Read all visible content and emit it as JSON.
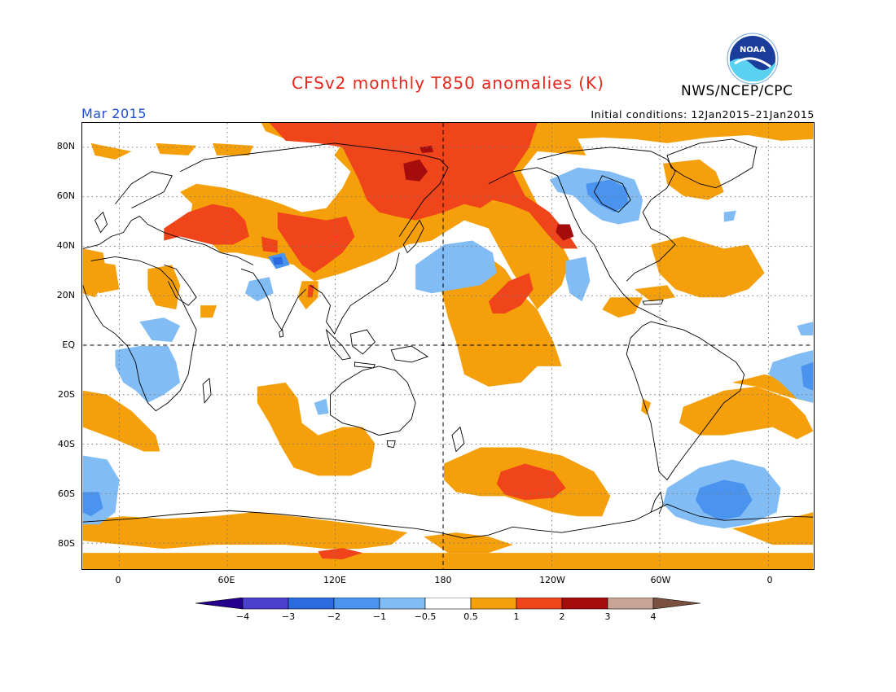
{
  "header": {
    "title": "CFSv2 monthly T850 anomalies (K)",
    "agency": "NWS/NCEP/CPC",
    "month": "Mar 2015",
    "initial_conditions": "Initial conditions: 12Jan2015–21Jan2015",
    "logo_text": "NOAA"
  },
  "map": {
    "variable": "T850 anomalies",
    "units": "K",
    "lat_labels": [
      "80N",
      "60N",
      "40N",
      "20N",
      "EQ",
      "20S",
      "40S",
      "60S",
      "80S"
    ],
    "lon_labels": [
      "0",
      "60E",
      "120E",
      "180",
      "120W",
      "60W",
      "0"
    ]
  },
  "colorbar": {
    "labels": [
      "−4",
      "−3",
      "−2",
      "−1",
      "−0.5",
      "0.5",
      "1",
      "2",
      "3",
      "4"
    ],
    "colors": [
      "#24008c",
      "#4a3fcf",
      "#2a6be0",
      "#4a93ee",
      "#82bcf5",
      "#ffffff",
      "#f5a00a",
      "#f0441a",
      "#a50d0d",
      "#c9a596",
      "#7a5040"
    ]
  },
  "palette": {
    "warm1": "#f5a00a",
    "warm2": "#f0441a",
    "warm3": "#a50d0d",
    "cool1": "#82bcf5",
    "cool2": "#4a93ee",
    "cool3": "#2a6be0",
    "title": "#e8261b",
    "month": "#1f4fd6"
  }
}
